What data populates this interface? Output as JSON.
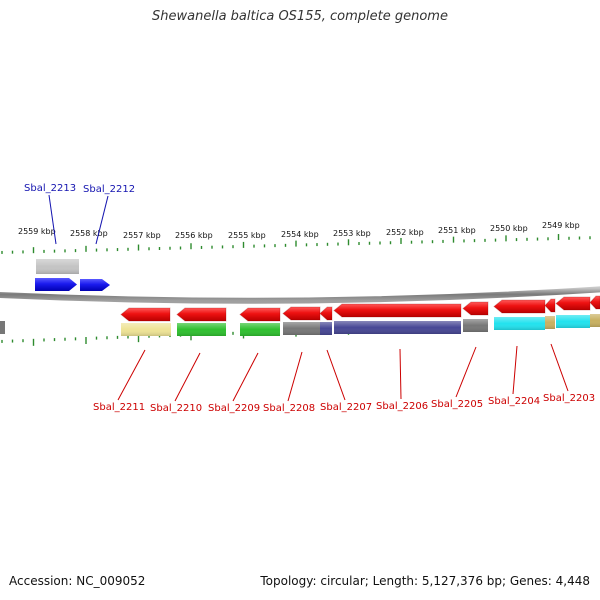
{
  "title": "Shewanella baltica OS155, complete genome",
  "footer": {
    "accession": "Accession: NC_009052",
    "stats": "Topology: circular; Length: 5,127,376 bp; Genes: 4,448"
  },
  "colors": {
    "forward_label": "#1515b0",
    "reverse_label": "#cc0000",
    "forward_gene": "#1a1aee",
    "reverse_gene": "#ee1111",
    "backbone": "#808080",
    "tick": "#2e8b2e"
  },
  "scale_ticks": [
    "2559 kbp",
    "2558 kbp",
    "2557 kbp",
    "2556 kbp",
    "2555 kbp",
    "2554 kbp",
    "2553 kbp",
    "2552 kbp",
    "2551 kbp",
    "2550 kbp",
    "2549 kbp"
  ],
  "forward_genes": [
    {
      "name": "Sbal_2213",
      "cog_color": "#c4c4c4"
    },
    {
      "name": "Sbal_2212",
      "cog_color": null
    }
  ],
  "reverse_genes": [
    {
      "name": "Sbal_2211",
      "cog_color": "#eee395"
    },
    {
      "name": "Sbal_2210",
      "cog_color": "#2fc02f"
    },
    {
      "name": "Sbal_2209",
      "cog_color": "#2fc02f"
    },
    {
      "name": "Sbal_2208",
      "cog_color": "#777777"
    },
    {
      "name": "Sbal_2207",
      "cog_color": "#474794"
    },
    {
      "name": "Sbal_2206",
      "cog_color": "#474794"
    },
    {
      "name": "Sbal_2205",
      "cog_color": "#777777"
    },
    {
      "name": "Sbal_2204",
      "cog_color": "#22e2ee"
    },
    {
      "name": "Sbal_2203",
      "cog_color": "#22e2ee"
    }
  ]
}
